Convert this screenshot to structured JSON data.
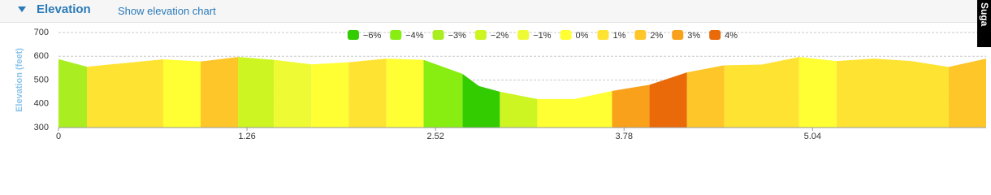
{
  "header": {
    "title": "Elevation",
    "link": "Show elevation chart"
  },
  "side_tab": "Suga",
  "chart_data": {
    "type": "area",
    "y_label": "Elevation (feet)",
    "xlim": [
      0,
      6.2
    ],
    "xticks": [
      0,
      1.26,
      2.52,
      3.78,
      5.04
    ],
    "ylim": [
      300,
      700
    ],
    "yticks": [
      300,
      400,
      500,
      600,
      700
    ],
    "grid": true,
    "series": [
      {
        "name": "−6%",
        "color": "#33cc00",
        "x": [
          2.7,
          2.81,
          2.95
        ],
        "values": [
          526,
          475,
          451
        ]
      },
      {
        "name": "−4%",
        "color": "#88ee11",
        "x": [
          2.44,
          2.7
        ],
        "values": [
          585,
          526
        ]
      },
      {
        "name": "−3%",
        "color": "#aaee22",
        "x": [
          0,
          0.19
        ],
        "values": [
          588,
          556
        ]
      },
      {
        "name": "−2%",
        "color": "#ccf522",
        "x": [
          1.2,
          1.44,
          null,
          2.95,
          3.2
        ],
        "values": [
          597,
          585,
          null,
          451,
          420
        ]
      },
      {
        "name": "−1%",
        "color": "#eefa33",
        "x": [
          1.44,
          1.69
        ],
        "values": [
          585,
          566
        ]
      },
      {
        "name": "0%",
        "color": "#ffff33",
        "x": [
          0.7,
          0.95,
          null,
          1.69,
          1.94,
          null,
          2.19,
          2.44,
          null,
          3.2,
          3.45,
          3.7,
          null,
          4.95,
          5.2
        ],
        "values": [
          587,
          578,
          null,
          566,
          575,
          null,
          590,
          585,
          null,
          420,
          420,
          454,
          null,
          597,
          580
        ]
      },
      {
        "name": "1%",
        "color": "#ffe333",
        "x": [
          0.19,
          0.45,
          0.7,
          null,
          1.94,
          2.19,
          null,
          4.45,
          4.7,
          4.95,
          null,
          5.2,
          5.45,
          5.7,
          5.95
        ],
        "values": [
          556,
          572,
          587,
          null,
          575,
          590,
          null,
          562,
          565,
          597,
          null,
          580,
          590,
          580,
          555
        ]
      },
      {
        "name": "2%",
        "color": "#ffc629",
        "x": [
          0.95,
          1.2,
          null,
          4.2,
          4.45,
          null,
          5.95,
          6.2
        ],
        "values": [
          578,
          597,
          null,
          532,
          562,
          null,
          555,
          590
        ]
      },
      {
        "name": "3%",
        "color": "#f9a11b",
        "x": [
          3.7,
          3.95
        ],
        "values": [
          454,
          480
        ]
      },
      {
        "name": "4%",
        "color": "#ea6a0a",
        "x": [
          3.95,
          4.2
        ],
        "values": [
          480,
          532
        ]
      }
    ]
  }
}
